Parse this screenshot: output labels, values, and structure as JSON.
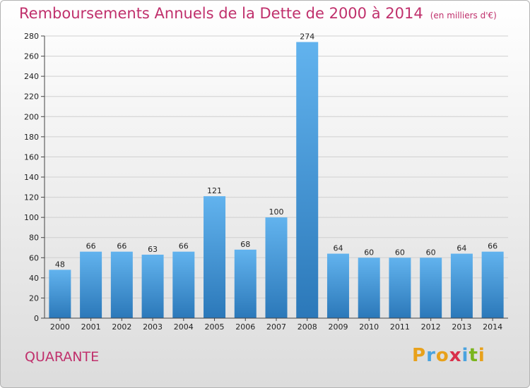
{
  "header": {
    "title": "Remboursements Annuels de la Dette de 2000 à 2014",
    "unit": "(en milliers d'€)"
  },
  "footer": {
    "commune": "QUARANTE",
    "logo": "Proxiti"
  },
  "colors": {
    "title": "#c0306c",
    "bar_top": "#62b3ee",
    "bar_bottom": "#2b78b9",
    "grid": "#d0d0d0"
  },
  "chart_data": {
    "type": "bar",
    "categories": [
      "2000",
      "2001",
      "2002",
      "2003",
      "2004",
      "2005",
      "2006",
      "2007",
      "2008",
      "2009",
      "2010",
      "2011",
      "2012",
      "2013",
      "2014"
    ],
    "values": [
      48,
      66,
      66,
      63,
      66,
      121,
      68,
      100,
      274,
      64,
      60,
      60,
      60,
      64,
      66
    ],
    "title": "Remboursements Annuels de la Dette de 2000 à 2014",
    "ylim": [
      0,
      280
    ],
    "yticks": [
      0,
      20,
      40,
      60,
      80,
      100,
      120,
      140,
      160,
      180,
      200,
      220,
      240,
      260,
      280
    ],
    "grid": true,
    "data_labels": true
  }
}
